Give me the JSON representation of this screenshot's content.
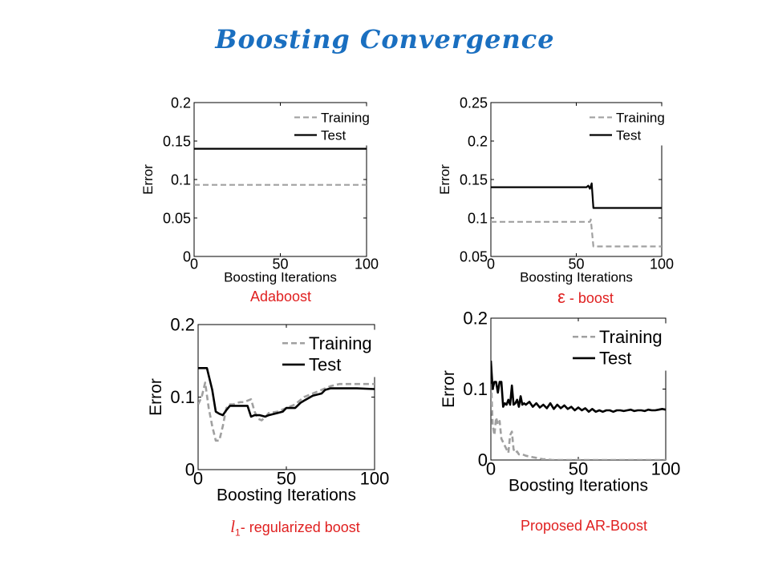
{
  "slide": {
    "title": "Boosting Convergence",
    "captions": {
      "adaboost": "Adaboost",
      "eps_symbol": "ε",
      "eps_text": " - boost",
      "l1_letter": "l",
      "l1_sub": "1",
      "l1_text": "- regularized boost",
      "arboost": "Proposed AR-Boost"
    }
  },
  "colors": {
    "title": "#1a6fc0",
    "caption": "#e02020",
    "training": "#a0a0a0",
    "test": "#000000"
  },
  "chart_data": [
    {
      "type": "line",
      "xlabel": "Boosting Iterations",
      "ylabel": "Error",
      "xlim": [
        0,
        100
      ],
      "ylim": [
        0,
        0.2
      ],
      "xticks": [
        0,
        50,
        100
      ],
      "xtick_labels": [
        "0",
        "50",
        "100"
      ],
      "yticks": [
        0,
        0.05,
        0.1,
        0.15,
        0.2
      ],
      "ytick_labels": [
        "0",
        "0.05",
        "0.1",
        "0.15",
        "0.2"
      ],
      "legend_position": "top-right",
      "grid": false,
      "series": [
        {
          "name": "Training",
          "style": "dashed",
          "x": [
            0,
            100
          ],
          "y": [
            0.093,
            0.093
          ]
        },
        {
          "name": "Test",
          "style": "solid",
          "x": [
            0,
            100
          ],
          "y": [
            0.14,
            0.14
          ]
        }
      ]
    },
    {
      "type": "line",
      "xlabel": "Boosting Iterations",
      "ylabel": "Error",
      "xlim": [
        0,
        100
      ],
      "ylim": [
        0.05,
        0.25
      ],
      "xticks": [
        0,
        50,
        100
      ],
      "xtick_labels": [
        "0",
        "50",
        "100"
      ],
      "yticks": [
        0.05,
        0.1,
        0.15,
        0.2,
        0.25
      ],
      "ytick_labels": [
        "0.05",
        "0.1",
        "0.15",
        "0.2",
        "0.25"
      ],
      "legend_position": "top-right",
      "grid": false,
      "series": [
        {
          "name": "Training",
          "style": "dashed",
          "x": [
            0,
            58,
            58.5,
            60,
            100
          ],
          "y": [
            0.095,
            0.095,
            0.098,
            0.063,
            0.063
          ]
        },
        {
          "name": "Test",
          "style": "solid",
          "x": [
            0,
            56,
            57,
            58,
            59,
            60,
            61,
            100
          ],
          "y": [
            0.14,
            0.14,
            0.142,
            0.138,
            0.145,
            0.113,
            0.113,
            0.113
          ]
        }
      ]
    },
    {
      "type": "line",
      "xlabel": "Boosting Iterations",
      "ylabel": "Error",
      "xlim": [
        0,
        100
      ],
      "ylim": [
        0,
        0.2
      ],
      "xticks": [
        0,
        50,
        100
      ],
      "xtick_labels": [
        "0",
        "50",
        "100"
      ],
      "yticks": [
        0,
        0.1,
        0.2
      ],
      "ytick_labels": [
        "0",
        "0.1",
        "0.2"
      ],
      "legend_position": "top-right",
      "grid": false,
      "series": [
        {
          "name": "Training",
          "style": "dashed",
          "x": [
            0,
            2,
            4,
            6,
            8,
            10,
            12,
            14,
            16,
            18,
            20,
            22,
            24,
            26,
            28,
            30,
            32,
            34,
            36,
            38,
            40,
            45,
            50,
            55,
            60,
            65,
            70,
            75,
            80,
            85,
            90,
            95,
            100
          ],
          "y": [
            0.09,
            0.1,
            0.12,
            0.085,
            0.06,
            0.04,
            0.04,
            0.06,
            0.085,
            0.09,
            0.09,
            0.092,
            0.093,
            0.093,
            0.095,
            0.097,
            0.08,
            0.07,
            0.068,
            0.072,
            0.078,
            0.08,
            0.085,
            0.09,
            0.1,
            0.105,
            0.11,
            0.115,
            0.118,
            0.118,
            0.118,
            0.118,
            0.118
          ]
        },
        {
          "name": "Test",
          "style": "solid",
          "x": [
            0,
            5,
            6,
            8,
            10,
            12,
            14,
            16,
            18,
            20,
            25,
            28,
            30,
            32,
            35,
            38,
            40,
            45,
            48,
            50,
            55,
            58,
            60,
            65,
            70,
            72,
            75,
            80,
            90,
            100
          ],
          "y": [
            0.14,
            0.14,
            0.13,
            0.11,
            0.08,
            0.077,
            0.075,
            0.082,
            0.088,
            0.088,
            0.088,
            0.088,
            0.073,
            0.075,
            0.075,
            0.073,
            0.075,
            0.078,
            0.08,
            0.085,
            0.085,
            0.092,
            0.095,
            0.102,
            0.105,
            0.11,
            0.112,
            0.112,
            0.112,
            0.111
          ]
        }
      ]
    },
    {
      "type": "line",
      "xlabel": "Boosting Iterations",
      "ylabel": "Error",
      "xlim": [
        0,
        100
      ],
      "ylim": [
        0,
        0.2
      ],
      "xticks": [
        0,
        50,
        100
      ],
      "xtick_labels": [
        "0",
        "50",
        "100"
      ],
      "yticks": [
        0,
        0.1,
        0.2
      ],
      "ytick_labels": [
        "0",
        "0.1",
        "0.2"
      ],
      "legend_position": "top-right",
      "grid": false,
      "series": [
        {
          "name": "Training",
          "style": "dashed",
          "x": [
            0,
            1,
            2,
            3,
            4,
            5,
            6,
            7,
            8,
            9,
            10,
            11,
            12,
            13,
            14,
            15,
            16,
            18,
            20,
            22,
            24,
            26,
            28,
            30,
            32,
            35,
            40,
            50,
            60,
            70,
            80,
            90,
            100
          ],
          "y": [
            0.12,
            0.05,
            0.035,
            0.06,
            0.05,
            0.055,
            0.03,
            0.025,
            0.02,
            0.015,
            0.01,
            0.035,
            0.04,
            0.015,
            0.01,
            0.012,
            0.008,
            0.008,
            0.006,
            0.005,
            0.004,
            0.003,
            0.002,
            0.001,
            0.001,
            0.0,
            0.0,
            0.0,
            0.0,
            0.0,
            0.0,
            0.0,
            0.0
          ]
        },
        {
          "name": "Test",
          "style": "solid",
          "x": [
            0,
            1,
            2,
            3,
            4,
            5,
            6,
            7,
            8,
            9,
            10,
            11,
            12,
            13,
            14,
            15,
            16,
            17,
            18,
            19,
            20,
            22,
            24,
            26,
            28,
            30,
            32,
            34,
            36,
            38,
            40,
            42,
            44,
            46,
            48,
            50,
            52,
            54,
            56,
            58,
            60,
            62,
            64,
            66,
            68,
            70,
            72,
            74,
            76,
            78,
            80,
            82,
            84,
            86,
            88,
            90,
            92,
            94,
            96,
            98,
            100
          ],
          "y": [
            0.14,
            0.1,
            0.11,
            0.11,
            0.095,
            0.11,
            0.11,
            0.075,
            0.08,
            0.078,
            0.085,
            0.078,
            0.105,
            0.078,
            0.08,
            0.085,
            0.075,
            0.09,
            0.078,
            0.08,
            0.078,
            0.082,
            0.075,
            0.08,
            0.074,
            0.078,
            0.073,
            0.08,
            0.072,
            0.078,
            0.073,
            0.077,
            0.072,
            0.075,
            0.07,
            0.074,
            0.07,
            0.073,
            0.068,
            0.072,
            0.068,
            0.07,
            0.068,
            0.07,
            0.07,
            0.068,
            0.07,
            0.07,
            0.069,
            0.07,
            0.071,
            0.069,
            0.07,
            0.07,
            0.069,
            0.071,
            0.07,
            0.07,
            0.071,
            0.072,
            0.071
          ]
        }
      ]
    }
  ]
}
